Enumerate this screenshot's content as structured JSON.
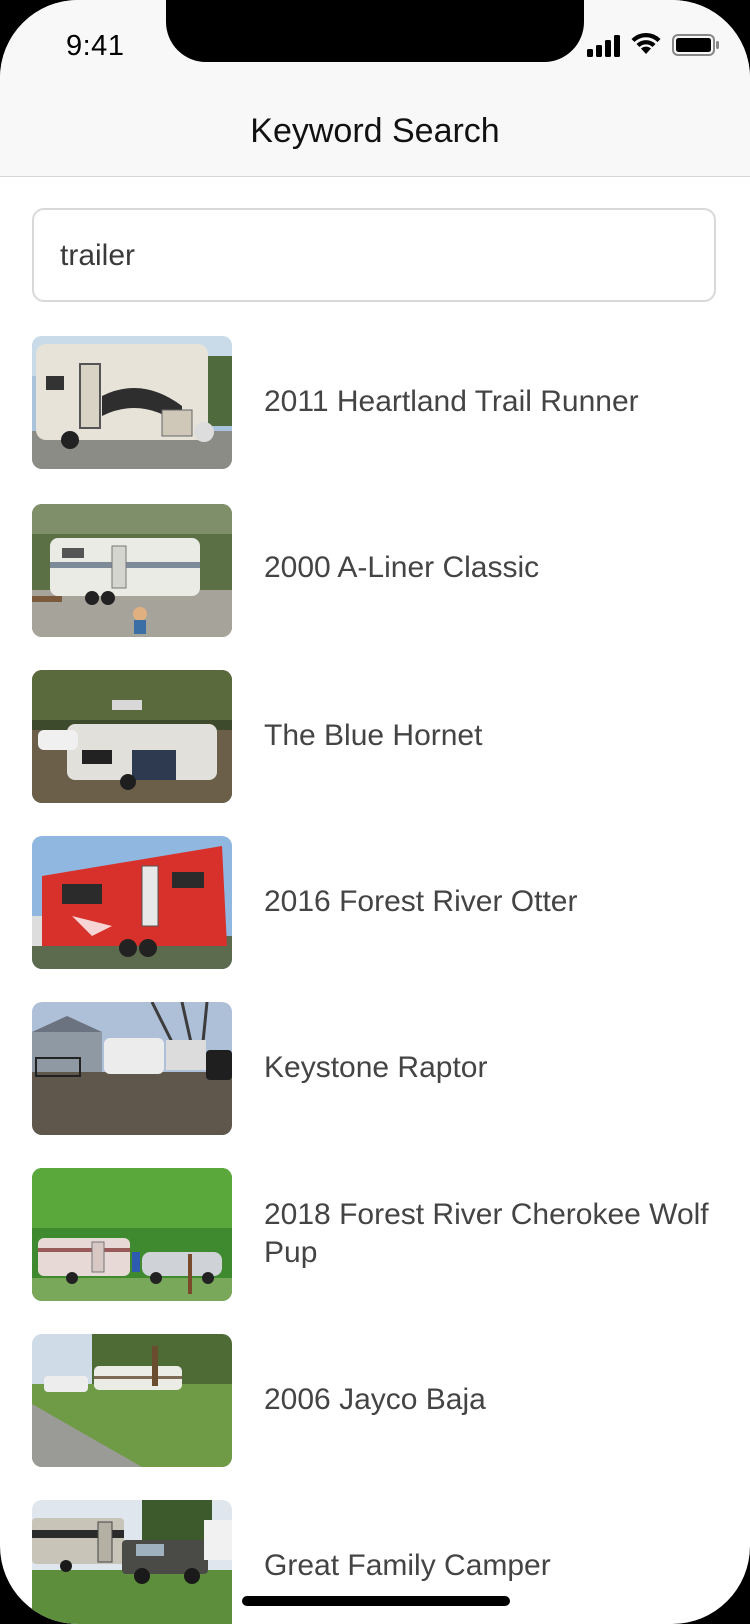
{
  "status_bar": {
    "time": "9:41"
  },
  "nav": {
    "title": "Keyword Search"
  },
  "search": {
    "value": "trailer"
  },
  "results": [
    {
      "title": "2011 Heartland Trail Runner"
    },
    {
      "title": "2000 A-Liner Classic"
    },
    {
      "title": "The Blue Hornet"
    },
    {
      "title": "2016 Forest River Otter"
    },
    {
      "title": "Keystone Raptor"
    },
    {
      "title": "2018 Forest River Cherokee Wolf Pup"
    },
    {
      "title": "2006 Jayco Baja"
    },
    {
      "title": "Great Family Camper"
    }
  ],
  "icons": {
    "signal": "cellular-signal-icon",
    "wifi": "wifi-icon",
    "battery": "battery-icon"
  },
  "colors": {
    "nav_background": "#f8f8f8",
    "text_primary": "#111111",
    "text_secondary": "#444444",
    "border": "#d9d9d9"
  }
}
